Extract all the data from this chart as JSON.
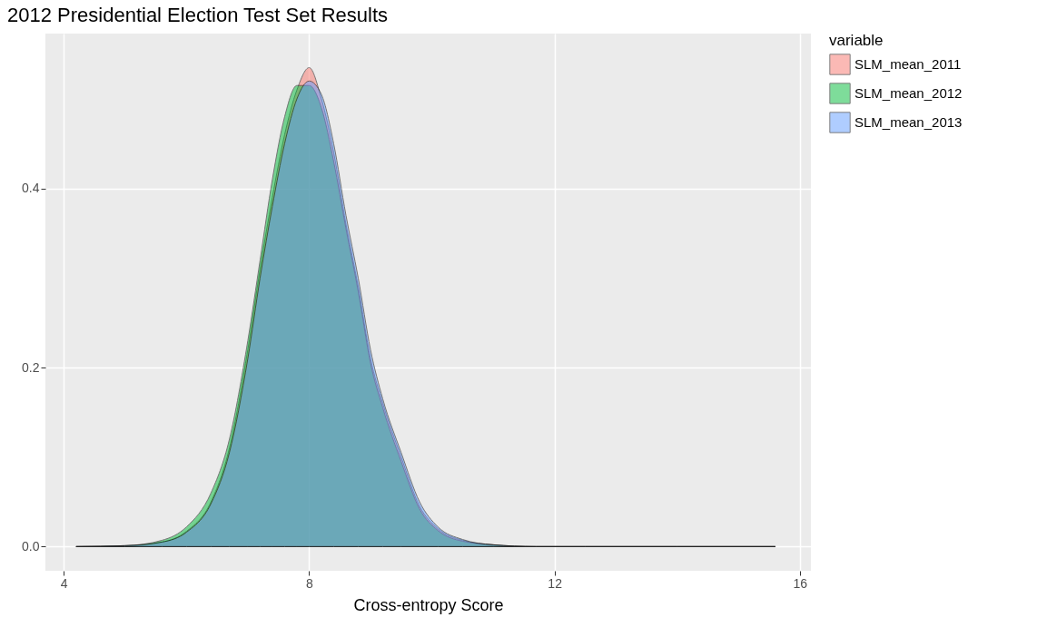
{
  "chart_data": {
    "type": "area",
    "title": "2012 Presidential Election Test Set Results",
    "xlabel": "Cross-entropy Score",
    "legend_title": "variable",
    "x": [
      4.2,
      5.0,
      5.6,
      6.0,
      6.4,
      6.7,
      7.0,
      7.2,
      7.4,
      7.6,
      7.8,
      8.0,
      8.2,
      8.4,
      8.6,
      8.8,
      9.0,
      9.2,
      9.5,
      9.8,
      10.1,
      10.5,
      11.0,
      11.7,
      12.5,
      14.0,
      15.6
    ],
    "series": [
      {
        "name": "SLM_mean_2011",
        "color": "#f8766d",
        "values": [
          0,
          0.001,
          0.005,
          0.017,
          0.05,
          0.11,
          0.22,
          0.31,
          0.39,
          0.46,
          0.51,
          0.535,
          0.5,
          0.44,
          0.36,
          0.29,
          0.21,
          0.16,
          0.1,
          0.045,
          0.02,
          0.007,
          0.002,
          0,
          0,
          0,
          0
        ]
      },
      {
        "name": "SLM_mean_2012",
        "color": "#00ba38",
        "values": [
          0,
          0.001,
          0.007,
          0.022,
          0.06,
          0.12,
          0.23,
          0.32,
          0.41,
          0.48,
          0.515,
          0.515,
          0.49,
          0.43,
          0.355,
          0.285,
          0.205,
          0.155,
          0.095,
          0.042,
          0.018,
          0.006,
          0.002,
          0,
          0,
          0,
          0
        ]
      },
      {
        "name": "SLM_mean_2013",
        "color": "#619cff",
        "values": [
          0,
          0.001,
          0.005,
          0.016,
          0.048,
          0.105,
          0.21,
          0.3,
          0.38,
          0.45,
          0.5,
          0.52,
          0.505,
          0.45,
          0.37,
          0.3,
          0.22,
          0.165,
          0.105,
          0.05,
          0.022,
          0.008,
          0.002,
          0,
          0,
          0,
          0
        ]
      }
    ],
    "xlim": [
      3.7,
      16.18
    ],
    "ylim": [
      -0.027,
      0.573
    ],
    "xticks": [
      4,
      8,
      12,
      16
    ],
    "yticks": [
      {
        "value": 0,
        "label": "0.0"
      },
      {
        "value": 0.2,
        "label": "0.2"
      },
      {
        "value": 0.4,
        "label": "0.4"
      }
    ],
    "grid": true,
    "legend": "right"
  }
}
